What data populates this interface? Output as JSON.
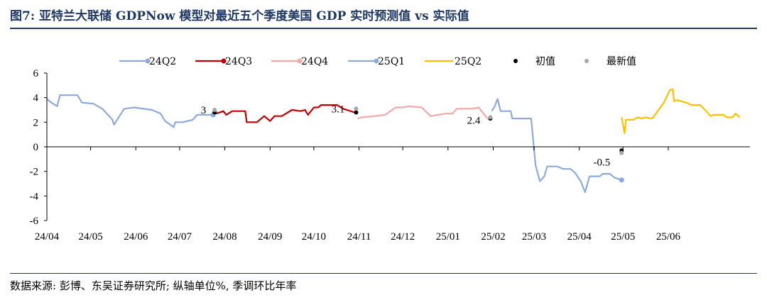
{
  "header": {
    "title": "图7: 亚特兰大联储 GDPNow 模型对最近五个季度美国 GDP 实时预测值 vs 实际值"
  },
  "footer": {
    "source": "数据来源: 彭博、东吴证券研究所; 纵轴单位%, 季调环比年率"
  },
  "chart_data": {
    "type": "line",
    "title": "图7: 亚特兰大联储 GDPNow 模型对最近五个季度美国 GDP 实时预测值 vs 实际值",
    "xlabel": "",
    "ylabel": "",
    "x_axis": "date (months, 24/04 – 25/06)",
    "xticks": [
      "24/04",
      "24/05",
      "24/06",
      "24/07",
      "24/08",
      "24/09",
      "24/10",
      "24/11",
      "24/12",
      "25/01",
      "25/02",
      "25/03",
      "25/04",
      "25/05",
      "25/06"
    ],
    "yticks": [
      "6",
      "4",
      "2",
      "0",
      "-2",
      "-4",
      "-6"
    ],
    "ylim": [
      -6,
      6
    ],
    "grid": false,
    "legend_position": "top",
    "series": [
      {
        "name": "24Q2",
        "color": "#8eaadb",
        "points": [
          [
            "2024-04-01",
            3.9
          ],
          [
            "2024-04-04",
            3.6
          ],
          [
            "2024-04-08",
            3.3
          ],
          [
            "2024-04-10",
            4.2
          ],
          [
            "2024-04-22",
            4.2
          ],
          [
            "2024-04-25",
            3.6
          ],
          [
            "2024-05-03",
            3.5
          ],
          [
            "2024-05-09",
            3.1
          ],
          [
            "2024-05-16",
            2.2
          ],
          [
            "2024-05-17",
            1.8
          ],
          [
            "2024-05-24",
            3.1
          ],
          [
            "2024-05-31",
            3.2
          ],
          [
            "2024-06-12",
            3.0
          ],
          [
            "2024-06-18",
            2.7
          ],
          [
            "2024-06-21",
            2.1
          ],
          [
            "2024-06-27",
            1.6
          ],
          [
            "2024-06-28",
            2.0
          ],
          [
            "2024-07-03",
            2.0
          ],
          [
            "2024-07-10",
            2.2
          ],
          [
            "2024-07-13",
            2.6
          ],
          [
            "2024-07-24",
            2.6
          ]
        ]
      },
      {
        "name": "24Q3",
        "color": "#c00000",
        "points": [
          [
            "2024-07-26",
            2.7
          ],
          [
            "2024-07-31",
            2.9
          ],
          [
            "2024-08-02",
            2.6
          ],
          [
            "2024-08-06",
            2.9
          ],
          [
            "2024-08-15",
            2.9
          ],
          [
            "2024-08-16",
            2.0
          ],
          [
            "2024-08-23",
            2.0
          ],
          [
            "2024-08-28",
            2.5
          ],
          [
            "2024-09-01",
            2.1
          ],
          [
            "2024-09-04",
            2.5
          ],
          [
            "2024-09-09",
            2.5
          ],
          [
            "2024-09-16",
            3.0
          ],
          [
            "2024-09-22",
            2.9
          ],
          [
            "2024-09-25",
            3.0
          ],
          [
            "2024-09-27",
            2.6
          ],
          [
            "2024-10-01",
            3.2
          ],
          [
            "2024-10-04",
            3.2
          ],
          [
            "2024-10-06",
            3.4
          ],
          [
            "2024-10-10",
            3.4
          ],
          [
            "2024-10-12",
            3.4
          ],
          [
            "2024-10-17",
            3.4
          ],
          [
            "2024-10-21",
            3.1
          ],
          [
            "2024-10-29",
            2.8
          ]
        ]
      },
      {
        "name": "24Q4",
        "color": "#f4a7a7",
        "points": [
          [
            "2024-10-31",
            2.3
          ],
          [
            "2024-11-03",
            2.4
          ],
          [
            "2024-11-12",
            2.5
          ],
          [
            "2024-11-19",
            2.6
          ],
          [
            "2024-11-26",
            3.2
          ],
          [
            "2024-12-01",
            3.2
          ],
          [
            "2024-12-05",
            3.3
          ],
          [
            "2024-12-14",
            3.2
          ],
          [
            "2024-12-20",
            2.5
          ],
          [
            "2024-12-25",
            2.6
          ],
          [
            "2024-12-30",
            2.7
          ],
          [
            "2025-01-04",
            2.7
          ],
          [
            "2025-01-07",
            3.1
          ],
          [
            "2025-01-18",
            3.1
          ],
          [
            "2025-01-22",
            3.2
          ],
          [
            "2025-01-28",
            2.3
          ]
        ]
      },
      {
        "name": "25Q1",
        "color": "#8eaadb",
        "points": [
          [
            "2025-01-31",
            2.9
          ],
          [
            "2025-02-02",
            3.3
          ],
          [
            "2025-02-04",
            3.9
          ],
          [
            "2025-02-06",
            2.9
          ],
          [
            "2025-02-13",
            2.9
          ],
          [
            "2025-02-14",
            2.3
          ],
          [
            "2025-02-21",
            2.3
          ],
          [
            "2025-02-27",
            2.3
          ],
          [
            "2025-03-02",
            -1.5
          ],
          [
            "2025-03-05",
            -2.8
          ],
          [
            "2025-03-08",
            -2.4
          ],
          [
            "2025-03-10",
            -1.6
          ],
          [
            "2025-03-17",
            -1.6
          ],
          [
            "2025-03-21",
            -1.8
          ],
          [
            "2025-03-26",
            -1.8
          ],
          [
            "2025-03-29",
            -2.1
          ],
          [
            "2025-04-02",
            -2.8
          ],
          [
            "2025-04-05",
            -3.7
          ],
          [
            "2025-04-08",
            -2.4
          ],
          [
            "2025-04-15",
            -2.4
          ],
          [
            "2025-04-17",
            -2.2
          ],
          [
            "2025-04-22",
            -2.2
          ],
          [
            "2025-04-25",
            -2.5
          ],
          [
            "2025-04-30",
            -2.7
          ]
        ]
      },
      {
        "name": "25Q2",
        "color": "#ffc000",
        "points": [
          [
            "2025-04-30",
            2.4
          ],
          [
            "2025-05-02",
            1.1
          ],
          [
            "2025-05-03",
            2.2
          ],
          [
            "2025-05-08",
            2.2
          ],
          [
            "2025-05-11",
            2.4
          ],
          [
            "2025-05-14",
            2.3
          ],
          [
            "2025-05-16",
            2.4
          ],
          [
            "2025-05-21",
            2.3
          ],
          [
            "2025-05-29",
            3.6
          ],
          [
            "2025-06-02",
            4.6
          ],
          [
            "2025-06-04",
            4.7
          ],
          [
            "2025-06-05",
            3.7
          ],
          [
            "2025-06-07",
            3.8
          ],
          [
            "2025-06-13",
            3.6
          ],
          [
            "2025-06-17",
            3.4
          ],
          [
            "2025-06-23",
            3.4
          ],
          [
            "2025-06-27",
            2.9
          ],
          [
            "2025-06-30",
            2.5
          ],
          [
            "2025-07-02",
            2.6
          ],
          [
            "2025-07-09",
            2.6
          ],
          [
            "2025-07-11",
            2.4
          ],
          [
            "2025-07-15",
            2.4
          ],
          [
            "2025-07-17",
            2.7
          ],
          [
            "2025-07-20",
            2.4
          ]
        ]
      }
    ],
    "markers": [
      {
        "name": "初值",
        "color": "#000000",
        "points": [
          [
            "2024-07-25",
            2.8
          ],
          [
            "2024-10-30",
            2.8
          ],
          [
            "2025-01-30",
            2.3
          ],
          [
            "2025-04-30",
            -0.3
          ]
        ]
      },
      {
        "name": "最新值",
        "color": "#a6a6a6",
        "points": [
          [
            "2024-07-25",
            3.0
          ],
          [
            "2024-10-30",
            3.1
          ],
          [
            "2025-01-30",
            2.4
          ],
          [
            "2025-04-30",
            -0.5
          ]
        ]
      }
    ],
    "annotations": [
      {
        "text": "3",
        "x": "2024-07-25",
        "y": 3.0
      },
      {
        "text": "3.1",
        "x": "2024-10-30",
        "y": 3.1
      },
      {
        "text": "2.4",
        "x": "2025-01-30",
        "y": 2.4
      },
      {
        "text": "-0.5",
        "x": "2025-04-30",
        "y": -0.5
      }
    ]
  }
}
